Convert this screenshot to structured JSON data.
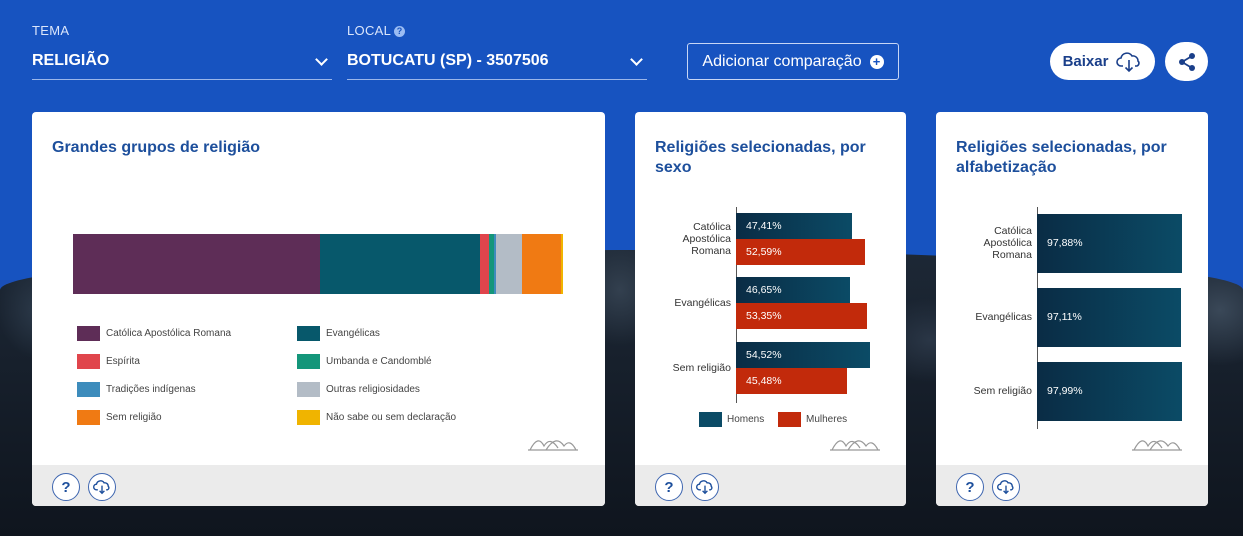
{
  "colors": {
    "header_blue": "#1753c0",
    "title_blue": "#1d4f9c",
    "catolica": "#5e2d57",
    "evangelicas": "#07586b",
    "espirita": "#e0454c",
    "umbanda": "#14967a",
    "indigenas": "#3d8cbc",
    "outras": "#b3bcc6",
    "sem_religiao": "#f07a13",
    "nao_sabe": "#f0b400",
    "homens": "#0b4b66",
    "mulheres": "#c22a0b"
  },
  "header": {
    "tema_label": "TEMA",
    "tema_value": "RELIGIÃO",
    "local_label": "LOCAL",
    "local_value": "BOTUCATU (SP) - 3507506",
    "compare_label": "Adicionar comparação",
    "download_label": "Baixar"
  },
  "icons": {
    "help": "question-icon",
    "download": "cloud-download-icon",
    "share": "share-icon",
    "add": "plus-circle-icon",
    "dropdown": "chevron-down-icon",
    "watermark": "ibge-logo"
  },
  "cards": {
    "grupos": {
      "title": "Grandes grupos de religião",
      "legend": [
        "Católica Apostólica Romana",
        "Evangélicas",
        "Espírita",
        "Umbanda e Candomblé",
        "Tradições indígenas",
        "Outras religiosidades",
        "Sem religião",
        "Não sabe ou sem declaração"
      ]
    },
    "sexo": {
      "title_line1": "Religiões selecionadas, por",
      "title_line2": "sexo",
      "legend": [
        "Homens",
        "Mulheres"
      ]
    },
    "alfabetizacao": {
      "title_line1": "Religiões selecionadas, por",
      "title_line2": "alfabetização"
    }
  },
  "chart_data": [
    {
      "type": "bar",
      "stacked": true,
      "title": "Grandes grupos de religião",
      "categories": [
        "Católica Apostólica Romana",
        "Evangélicas",
        "Espírita",
        "Umbanda e Candomblé",
        "Tradições indígenas",
        "Outras religiosidades",
        "Sem religião",
        "Não sabe ou sem declaração"
      ],
      "values": [
        50.5,
        32.5,
        2.0,
        1.0,
        0.4,
        5.2,
        8.0,
        0.4
      ],
      "unit": "%"
    },
    {
      "type": "bar",
      "orientation": "horizontal",
      "title": "Religiões selecionadas, por sexo",
      "categories": [
        "Católica Apostólica Romana",
        "Evangélicas",
        "Sem religião"
      ],
      "series": [
        {
          "name": "Homens",
          "values": [
            47.41,
            46.65,
            54.52
          ],
          "labels": [
            "47,41%",
            "46,65%",
            "54,52%"
          ]
        },
        {
          "name": "Mulheres",
          "values": [
            52.59,
            53.35,
            45.48
          ],
          "labels": [
            "52,59%",
            "53,35%",
            "45,48%"
          ]
        }
      ]
    },
    {
      "type": "bar",
      "orientation": "horizontal",
      "title": "Religiões selecionadas, por alfabetização",
      "categories": [
        "Católica Apostólica Romana",
        "Evangélicas",
        "Sem religião"
      ],
      "series": [
        {
          "values": [
            97.88,
            97.11,
            97.99
          ],
          "labels": [
            "97,88%",
            "97,11%",
            "97,99%"
          ]
        }
      ]
    }
  ]
}
